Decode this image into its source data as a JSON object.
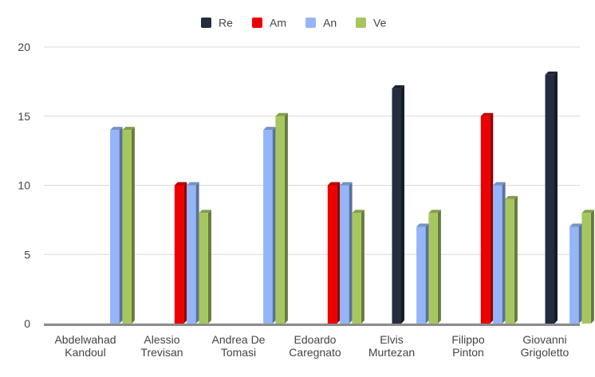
{
  "chart_data": {
    "type": "bar",
    "title": "",
    "xlabel": "",
    "ylabel": "",
    "categories": [
      [
        "Abdelwahad",
        "Kandoul"
      ],
      [
        "Alessio",
        "Trevisan"
      ],
      [
        "Andrea De",
        "Tomasi"
      ],
      [
        "Edoardo",
        "Caregnato"
      ],
      [
        "Elvis",
        "Murtezan"
      ],
      [
        "Filippo",
        "Pinton"
      ],
      [
        "Giovanni",
        "Grigoletto"
      ]
    ],
    "series": [
      {
        "name": "Re",
        "color": "#232d3f",
        "values": [
          0,
          0,
          0,
          0,
          17,
          0,
          18
        ]
      },
      {
        "name": "Am",
        "color": "#ee0000",
        "values": [
          0,
          10,
          0,
          10,
          0,
          15,
          0
        ]
      },
      {
        "name": "An",
        "color": "#94b6f8",
        "values": [
          14,
          10,
          14,
          10,
          7,
          10,
          7
        ]
      },
      {
        "name": "Ve",
        "color": "#a6c760",
        "values": [
          14,
          8,
          15,
          8,
          8,
          9,
          8
        ]
      }
    ],
    "ylim": [
      0,
      20
    ],
    "yticks": [
      0,
      5,
      10,
      15,
      20
    ],
    "grid": true,
    "legend": "top-center"
  }
}
